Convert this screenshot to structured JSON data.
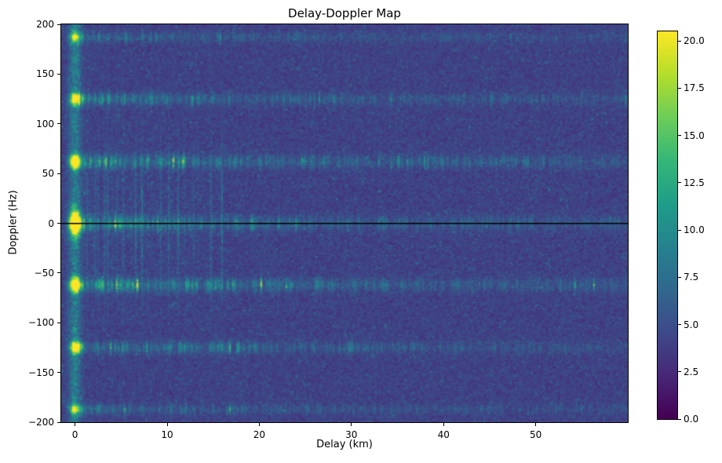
{
  "chart_data": {
    "type": "heatmap",
    "title": "Delay-Doppler Map",
    "xlabel": "Delay (km)",
    "ylabel": "Doppler (Hz)",
    "x_range": [
      -1.5,
      60
    ],
    "y_range": [
      -200,
      200
    ],
    "x_ticks": {
      "values": [
        0,
        10,
        20,
        30,
        40,
        50
      ],
      "labels": [
        "0",
        "10",
        "20",
        "30",
        "40",
        "50"
      ]
    },
    "y_ticks": {
      "values": [
        -200,
        -150,
        -100,
        -50,
        0,
        50,
        100,
        150,
        200
      ],
      "labels": [
        "−200",
        "−150",
        "−100",
        "−50",
        "0",
        "50",
        "100",
        "150",
        "200"
      ]
    },
    "colormap": "viridis",
    "color_range": [
      0,
      20.5
    ],
    "colorbar_ticks": {
      "values": [
        0,
        2.5,
        5,
        7.5,
        10,
        12.5,
        15,
        17.5,
        20
      ],
      "labels": [
        "0.0",
        "2.5",
        "5.0",
        "7.5",
        "10.0",
        "12.5",
        "15.0",
        "17.5",
        "20.0"
      ]
    },
    "noise_floor": {
      "mean": 4.1,
      "spread": 1.6
    },
    "features": {
      "zero_doppler_line": {
        "doppler_hz": 0,
        "color": "#000000"
      },
      "direct_path_peak": {
        "delay_km": 0,
        "doppler_hz": 0,
        "value": 21
      },
      "zero_delay_column": {
        "delay_km": 0,
        "amplitude": 4.5,
        "width_km": 0.45
      },
      "doppler_stripes": [
        {
          "doppler_hz": 0,
          "amplitude": 14,
          "width_hz": 5
        },
        {
          "doppler_hz": 62,
          "amplitude": 16,
          "width_hz": 4.5
        },
        {
          "doppler_hz": -62,
          "amplitude": 16,
          "width_hz": 4.5
        },
        {
          "doppler_hz": 125,
          "amplitude": 11.5,
          "width_hz": 4
        },
        {
          "doppler_hz": -125,
          "amplitude": 11.5,
          "width_hz": 4
        },
        {
          "doppler_hz": 187,
          "amplitude": 8.5,
          "width_hz": 3.5
        },
        {
          "doppler_hz": -187,
          "amplitude": 8.5,
          "width_hz": 3.5
        }
      ],
      "clutter_region": {
        "delay_km": [
          0.8,
          16
        ],
        "doppler_hz": [
          -100,
          100
        ],
        "max_boost": 4.5
      }
    },
    "seed": 42
  }
}
